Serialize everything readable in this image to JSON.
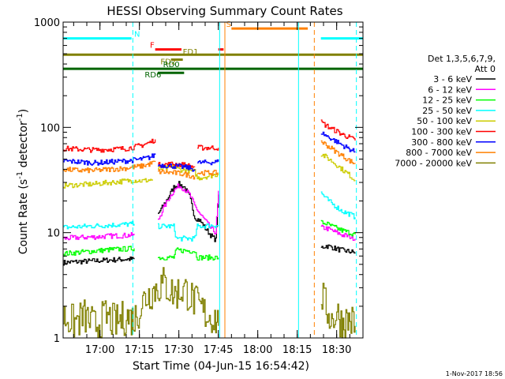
{
  "chart_data": {
    "type": "line",
    "title": "HESSI Observing Summary Count Rates",
    "xlabel": "Start Time (04-Jun-15 16:54:42)",
    "ylabel": "Count Rate (s⁻¹ detector⁻¹)",
    "ylabel_parts": {
      "main": "Count Rate (s",
      "exp1": "-1",
      "mid": " detector",
      "exp2": "-1",
      "end": ")"
    },
    "yscale": "log",
    "xlim_minutes": [
      -14,
      100
    ],
    "ylim": [
      1,
      1000
    ],
    "ytick_values": [
      1,
      10,
      100,
      1000
    ],
    "ytick_labels": [
      "1",
      "10",
      "100",
      "1000"
    ],
    "xtick_minutes": [
      0,
      15,
      30,
      45,
      60,
      75,
      90
    ],
    "xtick_labels": [
      "17:00",
      "17:15",
      "17:30",
      "17:45",
      "18:00",
      "18:15",
      "18:30"
    ],
    "x_unit": "minutes after 17:00",
    "legend": {
      "position": "right",
      "header1": "Det 1,3,5,6,7,9,",
      "header2": "Att 0",
      "entries": [
        {
          "label": "3 - 6 keV",
          "color": "#000000"
        },
        {
          "label": "6 - 12 keV",
          "color": "#ff00ff"
        },
        {
          "label": "12 - 25 keV",
          "color": "#00ff00"
        },
        {
          "label": "25 - 50 keV",
          "color": "#00ffff"
        },
        {
          "label": "50 - 100 keV",
          "color": "#cccc00"
        },
        {
          "label": "100 - 300 keV",
          "color": "#ff0000"
        },
        {
          "label": "300 - 800 keV",
          "color": "#0000ff"
        },
        {
          "label": "800 - 7000 keV",
          "color": "#ff8000"
        },
        {
          "label": "7000 - 20000 keV",
          "color": "#808000"
        }
      ]
    },
    "series": [
      {
        "name": "3 - 6 keV",
        "color": "#000000",
        "segments": [
          [
            [
              -14,
              5.2
            ],
            [
              -8,
              5.3
            ],
            [
              -2,
              5.4
            ],
            [
              4,
              5.5
            ],
            [
              10,
              5.6
            ],
            [
              13,
              5.6
            ]
          ],
          [
            [
              22,
              15
            ],
            [
              24,
              18
            ],
            [
              26,
              22
            ],
            [
              28,
              27
            ],
            [
              30,
              29
            ],
            [
              32,
              27
            ],
            [
              34,
              22
            ],
            [
              36,
              14
            ],
            [
              38,
              13
            ],
            [
              40,
              11
            ],
            [
              42,
              9.5
            ],
            [
              44,
              8.5
            ],
            [
              45,
              23
            ]
          ],
          [
            [
              84,
              7.2
            ],
            [
              86,
              7.5
            ],
            [
              88,
              7.3
            ],
            [
              90,
              7.0
            ],
            [
              92,
              6.8
            ],
            [
              95,
              6.6
            ],
            [
              97,
              6.5
            ]
          ]
        ]
      },
      {
        "name": "6 - 12 keV",
        "color": "#ff00ff",
        "segments": [
          [
            [
              -14,
              8.8
            ],
            [
              -8,
              9.0
            ],
            [
              -2,
              9.1
            ],
            [
              4,
              9.3
            ],
            [
              10,
              9.4
            ],
            [
              13,
              9.5
            ]
          ],
          [
            [
              22,
              13
            ],
            [
              24,
              17
            ],
            [
              26,
              21
            ],
            [
              28,
              25
            ],
            [
              30,
              28
            ],
            [
              32,
              26
            ],
            [
              34,
              23
            ],
            [
              36,
              18
            ],
            [
              38,
              15
            ],
            [
              40,
              13
            ],
            [
              42,
              11
            ],
            [
              44,
              10
            ],
            [
              45,
              25
            ]
          ],
          [
            [
              84,
              11.2
            ],
            [
              86,
              11
            ],
            [
              88,
              10.5
            ],
            [
              90,
              10
            ],
            [
              92,
              9.5
            ],
            [
              95,
              9.2
            ],
            [
              97,
              8.8
            ]
          ]
        ]
      },
      {
        "name": "12 - 25 keV",
        "color": "#00ff00",
        "segments": [
          [
            [
              -14,
              6.3
            ],
            [
              -8,
              6.5
            ],
            [
              -2,
              6.7
            ],
            [
              4,
              6.9
            ],
            [
              10,
              7.0
            ],
            [
              13,
              7.1
            ]
          ],
          [
            [
              22,
              5.8
            ],
            [
              28,
              5.8
            ],
            [
              29,
              6.8
            ],
            [
              36,
              6.7
            ],
            [
              37,
              5.8
            ],
            [
              45,
              5.8
            ]
          ],
          [
            [
              84,
              12.5
            ],
            [
              86,
              12.2
            ],
            [
              88,
              11.5
            ],
            [
              90,
              11
            ],
            [
              92,
              10.5
            ],
            [
              95,
              10
            ],
            [
              97,
              9.6
            ]
          ]
        ]
      },
      {
        "name": "25 - 50 keV",
        "color": "#00ffff",
        "segments": [
          [
            [
              -14,
              11.2
            ],
            [
              -8,
              11.4
            ],
            [
              -2,
              11.6
            ],
            [
              4,
              11.8
            ],
            [
              10,
              12.0
            ],
            [
              13,
              12.1
            ]
          ],
          [
            [
              22,
              11.5
            ],
            [
              28,
              11.5
            ],
            [
              29,
              8.8
            ],
            [
              36,
              8.8
            ],
            [
              37,
              11.5
            ],
            [
              45,
              11.8
            ]
          ],
          [
            [
              84,
              24
            ],
            [
              86,
              21
            ],
            [
              88,
              19
            ],
            [
              90,
              17.5
            ],
            [
              92,
              16
            ],
            [
              95,
              15
            ],
            [
              97,
              14
            ]
          ]
        ]
      },
      {
        "name": "50 - 100 keV",
        "color": "#cccc00",
        "segments": [
          [
            [
              -14,
              28
            ],
            [
              -8,
              28.5
            ],
            [
              -2,
              29
            ],
            [
              4,
              30
            ],
            [
              10,
              31
            ],
            [
              13,
              31.5
            ],
            [
              16,
              31
            ],
            [
              20,
              32
            ]
          ],
          [
            [
              22,
              40
            ],
            [
              28,
              42
            ],
            [
              30,
              40
            ],
            [
              36,
              38
            ],
            [
              37,
              33
            ],
            [
              40,
              34
            ],
            [
              45,
              36
            ]
          ],
          [
            [
              84,
              56
            ],
            [
              86,
              52
            ],
            [
              88,
              48
            ],
            [
              90,
              44
            ],
            [
              92,
              40
            ],
            [
              95,
              35
            ],
            [
              97,
              31
            ]
          ]
        ]
      },
      {
        "name": "100 - 300 keV",
        "color": "#ff0000",
        "segments": [
          [
            [
              -14,
              63
            ],
            [
              -8,
              62
            ],
            [
              -2,
              61
            ],
            [
              4,
              62
            ],
            [
              10,
              63
            ],
            [
              13,
              65
            ],
            [
              16,
              68
            ],
            [
              19,
              72
            ],
            [
              21,
              77
            ]
          ],
          [
            [
              22,
              44
            ],
            [
              28,
              45
            ],
            [
              32,
              44
            ],
            [
              34,
              43
            ],
            [
              36,
              42
            ]
          ],
          [
            [
              37,
              64
            ],
            [
              45,
              64
            ]
          ],
          [
            [
              84,
              112
            ],
            [
              86,
              104
            ],
            [
              88,
              97
            ],
            [
              90,
              92
            ],
            [
              92,
              86
            ],
            [
              95,
              80
            ],
            [
              97,
              75
            ]
          ]
        ]
      },
      {
        "name": "300 - 800 keV",
        "color": "#0000ff",
        "segments": [
          [
            [
              -14,
              48
            ],
            [
              -8,
              47
            ],
            [
              -2,
              46
            ],
            [
              4,
              47
            ],
            [
              10,
              48
            ],
            [
              13,
              49
            ],
            [
              16,
              50
            ],
            [
              19,
              52
            ],
            [
              21,
              55
            ]
          ],
          [
            [
              22,
              44
            ],
            [
              28,
              43
            ],
            [
              32,
              42
            ],
            [
              34,
              41
            ],
            [
              36,
              40
            ]
          ],
          [
            [
              37,
              46
            ],
            [
              45,
              47
            ]
          ],
          [
            [
              84,
              90
            ],
            [
              86,
              83
            ],
            [
              88,
              78
            ],
            [
              90,
              73
            ],
            [
              92,
              68
            ],
            [
              95,
              62
            ],
            [
              97,
              58
            ]
          ]
        ]
      },
      {
        "name": "800 - 7000 keV",
        "color": "#ff8000",
        "segments": [
          [
            [
              -14,
              40
            ],
            [
              -8,
              39
            ],
            [
              -2,
              39
            ],
            [
              4,
              40
            ],
            [
              10,
              41
            ],
            [
              13,
              42
            ],
            [
              16,
              43
            ],
            [
              19,
              45
            ],
            [
              21,
              47
            ]
          ],
          [
            [
              22,
              38
            ],
            [
              28,
              37
            ],
            [
              32,
              36
            ],
            [
              34,
              35
            ],
            [
              36,
              34
            ]
          ],
          [
            [
              37,
              37
            ],
            [
              45,
              37
            ]
          ],
          [
            [
              84,
              74
            ],
            [
              86,
              68
            ],
            [
              88,
              63
            ],
            [
              90,
              58
            ],
            [
              92,
              54
            ],
            [
              95,
              48
            ],
            [
              97,
              45
            ]
          ]
        ]
      },
      {
        "name": "7000 - 20000 keV",
        "color": "#808000",
        "segments": [
          [
            [
              -14,
              1.6
            ],
            [
              -10,
              1.4
            ],
            [
              -6,
              1.6
            ],
            [
              -2,
              1.3
            ],
            [
              2,
              1.6
            ],
            [
              6,
              1.4
            ],
            [
              10,
              1.6
            ],
            [
              13,
              1.5
            ],
            [
              17,
              2.4
            ],
            [
              20,
              2.8
            ],
            [
              24,
              3.3
            ],
            [
              28,
              2.6
            ],
            [
              32,
              2.9
            ],
            [
              36,
              2.2
            ],
            [
              40,
              1.7
            ],
            [
              44,
              1.5
            ],
            [
              45,
              1.3
            ]
          ],
          [
            [
              84,
              2.6
            ],
            [
              86,
              1.9
            ],
            [
              88,
              1.5
            ],
            [
              90,
              1.7
            ],
            [
              92,
              1.4
            ],
            [
              95,
              1.5
            ],
            [
              97,
              1.3
            ]
          ]
        ]
      }
    ],
    "orbit_flags": [
      {
        "label": "N",
        "color": "#00ffff",
        "y": 700,
        "x_start": -14,
        "x_end": 12,
        "label_x": 13
      },
      {
        "label": "",
        "color": "#00ffff",
        "y": 700,
        "x_start": 84,
        "x_end": 100
      },
      {
        "label": "S",
        "color": "#ff8000",
        "y": 870,
        "x_start": 50,
        "x_end": 79,
        "label_x": 48
      },
      {
        "label": "F",
        "color": "#ff0000",
        "y": 550,
        "x_start": 21,
        "x_end": 31,
        "label_x": 19
      },
      {
        "label": "",
        "color": "#ff0000",
        "y": 550,
        "x_start": 45,
        "x_end": 47
      },
      {
        "label": "FD1",
        "color": "#808000",
        "y": 490,
        "x_start": -14,
        "x_end": 100,
        "label_x": 31.5
      },
      {
        "label": "FD2",
        "color": "#808000",
        "y": 440,
        "x_start": 27,
        "x_end": 31.5,
        "label_x": 23
      },
      {
        "label": "RD0",
        "color": "#006400",
        "y": 360,
        "x_start": -14,
        "x_end": 100,
        "label_x": 24
      },
      {
        "label": "RD6",
        "color": "#006400",
        "y": 330,
        "x_start": 22,
        "x_end": 32,
        "label_x": 17
      }
    ],
    "vertical_markers": [
      {
        "x": 12.5,
        "color": "#00ffff",
        "style": "dashed"
      },
      {
        "x": 45.5,
        "color": "#00ffff",
        "style": "solid"
      },
      {
        "x": 47.5,
        "color": "#ff8000",
        "style": "solid"
      },
      {
        "x": 75.5,
        "color": "#00ffff",
        "style": "solid"
      },
      {
        "x": 81.5,
        "color": "#ff8000",
        "style": "dashed"
      },
      {
        "x": 97.5,
        "color": "#00ffff",
        "style": "dashed"
      }
    ]
  },
  "footer": {
    "timestamp": "1-Nov-2017 18:56"
  }
}
